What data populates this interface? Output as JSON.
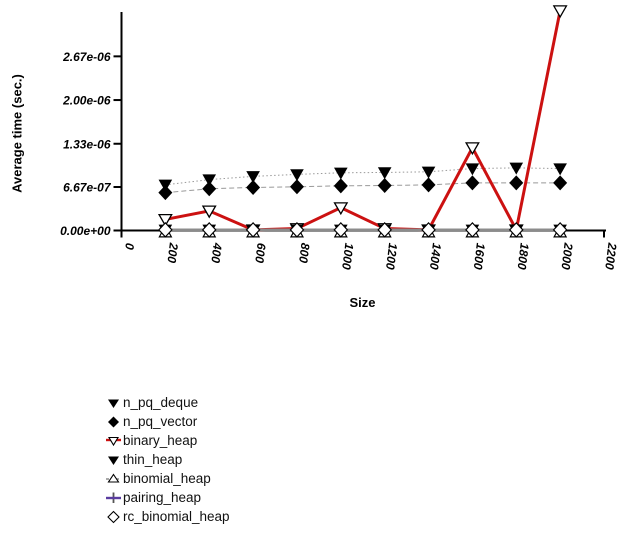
{
  "chart_data": {
    "type": "line",
    "title": "",
    "xlabel": "Size",
    "ylabel": "Average time (sec.)",
    "xlim": [
      0,
      2200
    ],
    "ylim": [
      0,
      3.35e-06
    ],
    "grid": false,
    "legend_position": "below-left",
    "x_tick_values": [
      0,
      200,
      400,
      600,
      800,
      1000,
      1200,
      1400,
      1600,
      1800,
      2000,
      2200
    ],
    "x_tick_labels": [
      "0",
      "200",
      "400",
      "600",
      "800",
      "1000",
      "1200",
      "1400",
      "1600",
      "1800",
      "2000",
      "2200"
    ],
    "y_tick_values": [
      0,
      6.67e-07,
      1.33e-06,
      2e-06,
      2.67e-06
    ],
    "y_tick_labels": [
      "0.00e+00",
      "6.67e-07",
      "1.33e-06",
      "2.00e-06",
      "2.67e-06"
    ],
    "x": [
      200,
      400,
      600,
      800,
      1000,
      1200,
      1400,
      1600,
      1800,
      2000
    ],
    "series": [
      {
        "name": "n_pq_deque",
        "marker": "filled-down-triangle",
        "marker_color": "#000000",
        "line_color": "#999999",
        "line_style": "dotted",
        "values": [
          7e-07,
          7.8e-07,
          8.3e-07,
          8.6e-07,
          8.85e-07,
          8.9e-07,
          9e-07,
          9.5e-07,
          9.6e-07,
          9.5e-07
        ]
      },
      {
        "name": "n_pq_vector",
        "marker": "filled-diamond",
        "marker_color": "#000000",
        "line_color": "#999999",
        "line_style": "dashed",
        "values": [
          5.8e-07,
          6.4e-07,
          6.6e-07,
          6.7e-07,
          6.85e-07,
          6.9e-07,
          7e-07,
          7.3e-07,
          7.3e-07,
          7.3e-07
        ]
      },
      {
        "name": "binary_heap",
        "marker": "open-down-triangle",
        "marker_color": "#ffffff",
        "line_color": "#cc1111",
        "line_style": "solid",
        "values": [
          1.7e-07,
          3e-07,
          1e-08,
          3e-08,
          3.5e-07,
          3e-08,
          1e-08,
          1.27e-06,
          1e-08,
          3.37e-06
        ]
      },
      {
        "name": "thin_heap",
        "marker": "filled-down-triangle",
        "marker_color": "#000000",
        "line_color": "#333333",
        "line_style": "solid",
        "values": [
          1e-08,
          1e-08,
          1e-08,
          1e-08,
          1e-08,
          1e-08,
          1e-08,
          1e-08,
          1e-08,
          1e-08
        ]
      },
      {
        "name": "binomial_heap",
        "marker": "open-up-triangle",
        "marker_color": "#ffffff",
        "line_color": "#8c8c8c",
        "line_style": "solid",
        "values": [
          1e-08,
          1e-08,
          1e-08,
          1e-08,
          1e-08,
          1e-08,
          1e-08,
          1e-08,
          1e-08,
          1e-08
        ]
      },
      {
        "name": "pairing_heap",
        "marker": "plus",
        "marker_color": "#666666",
        "line_color": "#5a3ca0",
        "line_style": "solid",
        "values": [
          1e-08,
          1e-08,
          1e-08,
          1e-08,
          1e-08,
          1e-08,
          1e-08,
          1e-08,
          1e-08,
          1e-08
        ]
      },
      {
        "name": "rc_binomial_heap",
        "marker": "open-diamond",
        "marker_color": "#ffffff",
        "line_color": "#cccccc",
        "line_style": "solid",
        "values": [
          1e-08,
          1e-08,
          1e-08,
          1e-08,
          1e-08,
          1e-08,
          1e-08,
          1e-08,
          1e-08,
          1e-08
        ]
      }
    ],
    "colors": {
      "red": "#cc1111",
      "purple": "#5a3ca0",
      "zero_line_gray": "#8c8c8c",
      "dash_gray": "#999999",
      "axis": "#000000"
    }
  }
}
